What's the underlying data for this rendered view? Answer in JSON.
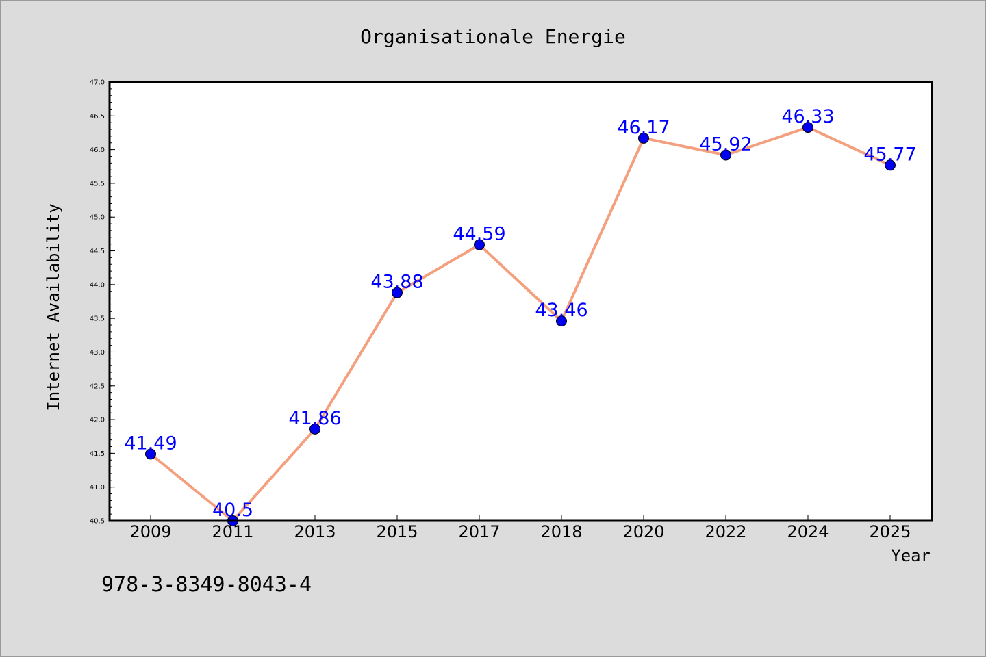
{
  "chart_data": {
    "type": "line",
    "title": "Organisationale Energie",
    "xlabel": "Year",
    "ylabel": "Internet Availability",
    "categories": [
      "2009",
      "2011",
      "2013",
      "2015",
      "2017",
      "2018",
      "2020",
      "2022",
      "2024",
      "2025"
    ],
    "series": [
      {
        "values": [
          41.49,
          40.5,
          41.86,
          43.88,
          44.59,
          43.46,
          46.17,
          45.92,
          46.33,
          45.77
        ]
      }
    ],
    "data_labels": [
      "41.49",
      "40.5",
      "41.86",
      "43.88",
      "44.59",
      "43.46",
      "46.17",
      "45.92",
      "46.33",
      "45.77"
    ],
    "ylim": [
      40.5,
      47.0
    ],
    "yticks": [
      "40.5",
      "41.0",
      "41.5",
      "42.0",
      "42.5",
      "43.0",
      "43.5",
      "44.0",
      "44.5",
      "45.0",
      "45.5",
      "46.0",
      "46.5",
      "47.0"
    ],
    "grid": false,
    "legend": "none",
    "colors": {
      "line": "#f4a07f",
      "marker": "#0000ee",
      "label": "#0000ff",
      "background": "#dcdcdc",
      "plot_area": "#ffffff"
    }
  },
  "footer_text": "978-3-8349-8043-4"
}
